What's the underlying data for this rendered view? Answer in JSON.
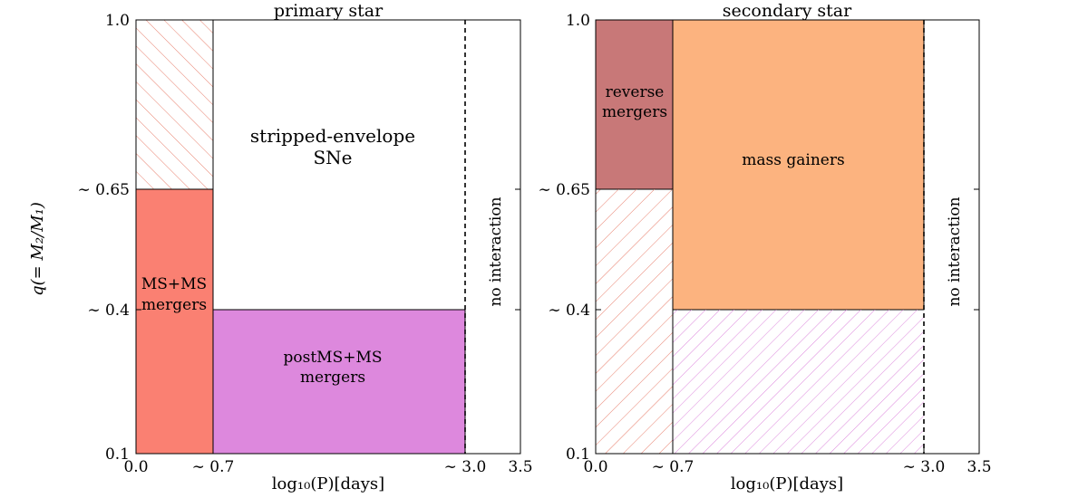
{
  "figure": {
    "y_axis_label": "q(= M₂/M₁)",
    "x_axis_label": "log₁₀(P)[days]",
    "x_ticks": [
      "0.0",
      "∼ 0.7",
      "∼ 3.0",
      "3.5"
    ],
    "y_ticks": [
      "0.1",
      "∼ 0.4",
      "∼ 0.65",
      "1.0"
    ]
  },
  "panels": [
    {
      "title": "primary star",
      "no_interaction": "no interaction",
      "regions": [
        {
          "lines": [
            "MS+MS",
            "mergers"
          ],
          "color": "#fa8072"
        },
        {
          "lines": [
            "postMS+MS",
            "mergers"
          ],
          "color": "#dd88dd"
        },
        {
          "lines": [
            "stripped-envelope",
            "SNe"
          ],
          "color": "#ffffff"
        }
      ]
    },
    {
      "title": "secondary star",
      "no_interaction": "no interaction",
      "regions": [
        {
          "lines": [
            "reverse",
            "mergers"
          ],
          "color": "#c87878"
        },
        {
          "lines": [
            "mass gainers"
          ],
          "color": "#fcb37f"
        }
      ]
    }
  ],
  "colors": {
    "hatch_red": "#e8806e",
    "hatch_purple": "#dd88dd",
    "frame": "#000000"
  }
}
